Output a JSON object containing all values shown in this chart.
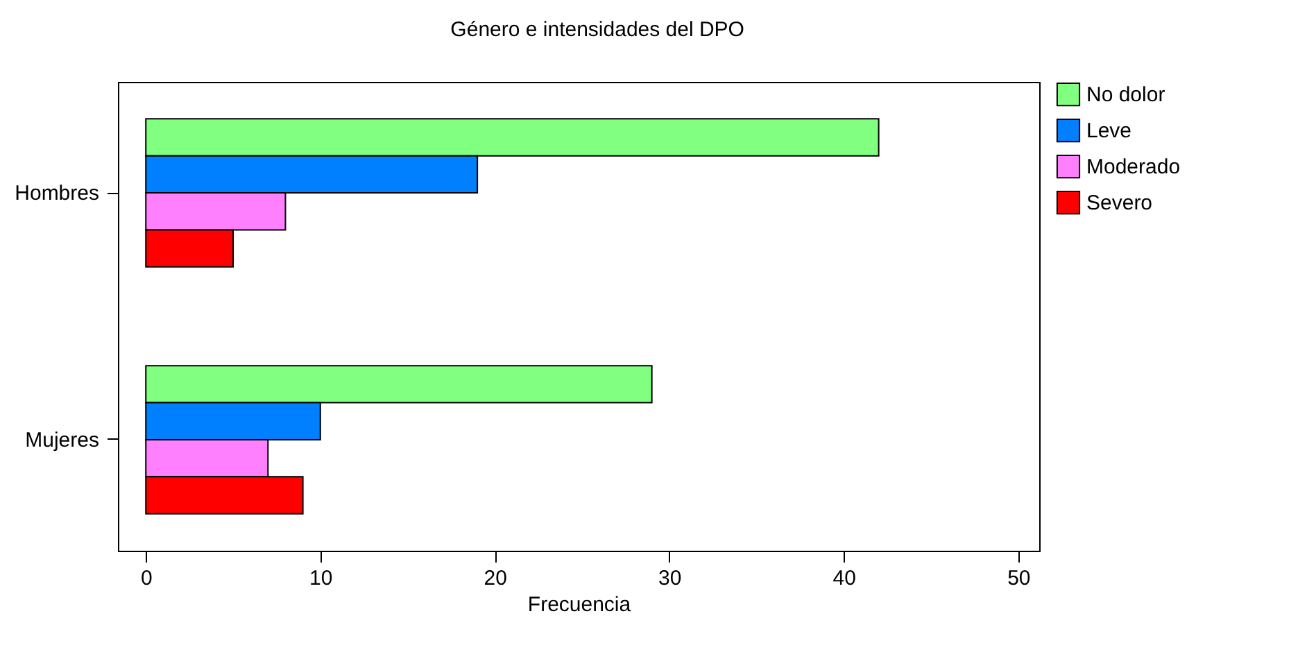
{
  "chart_data": {
    "type": "bar",
    "orientation": "horizontal",
    "title": "Género e intensidades del DPO",
    "xlabel": "Frecuencia",
    "categories": [
      "Hombres",
      "Mujeres"
    ],
    "series": [
      {
        "name": "No dolor",
        "color": "#80ff80",
        "values": [
          42,
          29
        ]
      },
      {
        "name": "Leve",
        "color": "#0080ff",
        "values": [
          19,
          10
        ]
      },
      {
        "name": "Moderado",
        "color": "#ff80ff",
        "values": [
          8,
          7
        ]
      },
      {
        "name": "Severo",
        "color": "#ff0000",
        "values": [
          5,
          9
        ]
      }
    ],
    "xlim": [
      -1.6,
      51.2
    ],
    "xticks": [
      0,
      10,
      20,
      30,
      40,
      50
    ],
    "grid": false,
    "legend": "right"
  }
}
